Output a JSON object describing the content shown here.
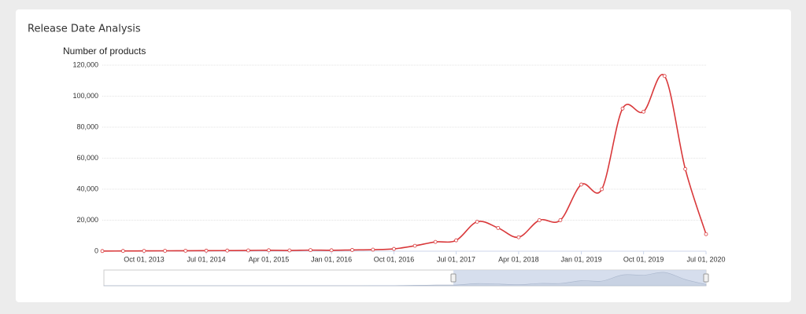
{
  "header": {
    "title": "Release Date Analysis"
  },
  "chart_data": {
    "type": "line",
    "y_label": "Number of products",
    "x": [
      "2013-04-01",
      "2013-07-01",
      "2013-10-01",
      "2014-01-01",
      "2014-04-01",
      "2014-07-01",
      "2014-10-01",
      "2015-01-01",
      "2015-04-01",
      "2015-07-01",
      "2015-10-01",
      "2016-01-01",
      "2016-04-01",
      "2016-07-01",
      "2016-10-01",
      "2017-01-01",
      "2017-04-01",
      "2017-07-01",
      "2017-10-01",
      "2018-01-01",
      "2018-04-01",
      "2018-07-01",
      "2018-10-01",
      "2019-01-01",
      "2019-04-01",
      "2019-07-01",
      "2019-10-01",
      "2020-01-01",
      "2020-04-01",
      "2020-07-01"
    ],
    "series": [
      {
        "name": "Number of products",
        "color": "#d9383a",
        "values": [
          100,
          150,
          200,
          250,
          300,
          350,
          400,
          500,
          600,
          500,
          700,
          600,
          800,
          1000,
          1500,
          3500,
          6000,
          7000,
          19000,
          15000,
          9000,
          20000,
          20000,
          43000,
          40000,
          92000,
          90000,
          113000,
          53000,
          11000
        ]
      }
    ],
    "xlim": [
      "2013-04-01",
      "2020-07-01"
    ],
    "xticks": [
      {
        "value": "2013-10-01",
        "label": "Oct 01, 2013"
      },
      {
        "value": "2014-07-01",
        "label": "Jul 01, 2014"
      },
      {
        "value": "2015-04-01",
        "label": "Apr 01, 2015"
      },
      {
        "value": "2016-01-01",
        "label": "Jan 01, 2016"
      },
      {
        "value": "2016-10-01",
        "label": "Oct 01, 2016"
      },
      {
        "value": "2017-07-01",
        "label": "Jul 01, 2017"
      },
      {
        "value": "2018-04-01",
        "label": "Apr 01, 2018"
      },
      {
        "value": "2019-01-01",
        "label": "Jan 01, 2019"
      },
      {
        "value": "2019-10-01",
        "label": "Oct 01, 2019"
      },
      {
        "value": "2020-07-01",
        "label": "Jul 01, 2020"
      }
    ],
    "ylim": [
      0,
      120000
    ],
    "yticks": [
      0,
      {
        "value": 20000,
        "label": "20,000"
      },
      {
        "value": 40000,
        "label": "40,000"
      },
      {
        "value": 60000,
        "label": "60,000"
      },
      {
        "value": 80000,
        "label": "80,000"
      },
      {
        "value": 100000,
        "label": "100,000"
      },
      {
        "value": 120000,
        "label": "120,000"
      }
    ],
    "grid": true
  }
}
